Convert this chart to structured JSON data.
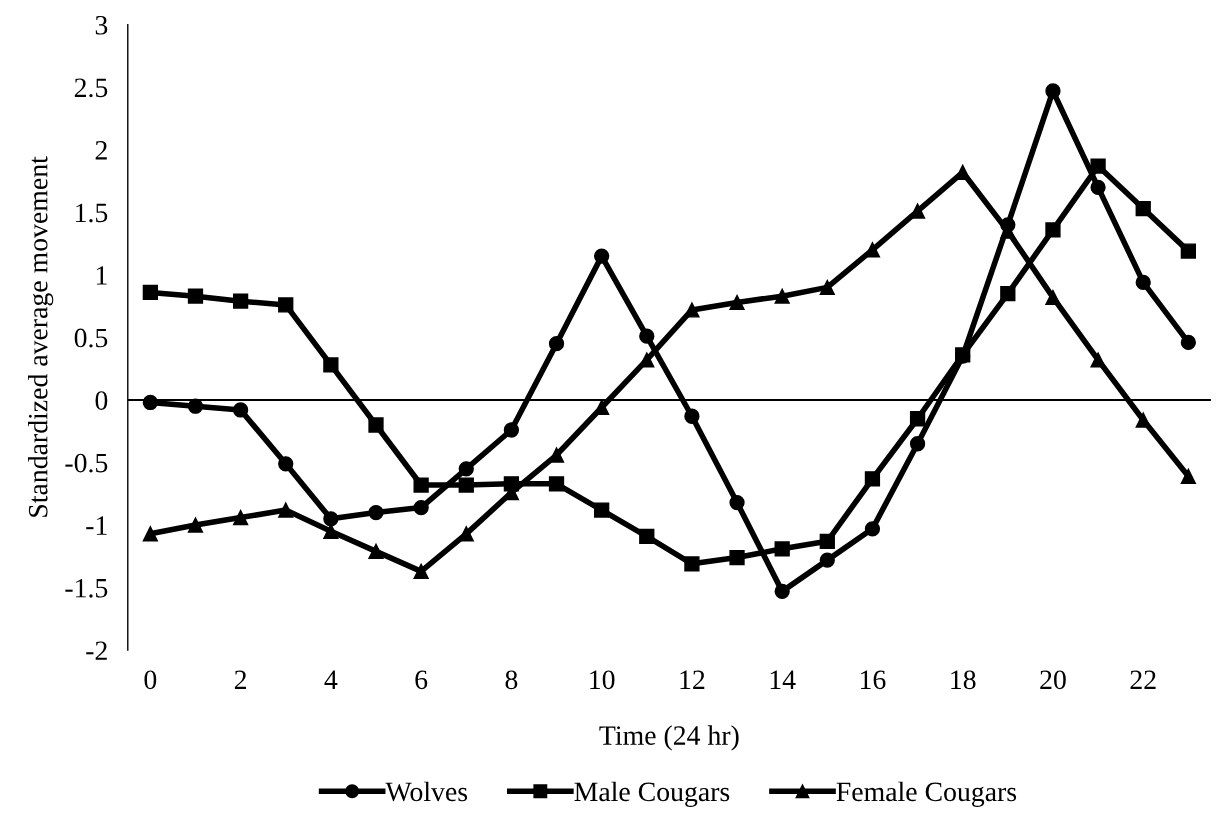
{
  "chart_data": {
    "type": "line",
    "xlabel": "Time (24 hr)",
    "ylabel": "Standardized average movement",
    "categories": [
      "0",
      null,
      "2",
      null,
      "4",
      null,
      "6",
      null,
      "8",
      null,
      "10",
      null,
      "12",
      null,
      "14",
      null,
      "16",
      null,
      "18",
      null,
      "20",
      null,
      "22",
      null
    ],
    "series": [
      {
        "name": "Wolves",
        "color": "#000000",
        "marker": "circle",
        "values": [
          -0.02,
          -0.05,
          -0.08,
          -0.51,
          -0.95,
          -0.9,
          -0.86,
          -0.55,
          -0.24,
          0.45,
          1.15,
          0.51,
          -0.13,
          -0.82,
          -1.53,
          -1.28,
          -1.03,
          -0.35,
          0.35,
          1.4,
          2.47,
          1.7,
          0.94,
          0.46
        ]
      },
      {
        "name": "Male Cougars",
        "color": "#000000",
        "marker": "square",
        "values": [
          0.86,
          0.83,
          0.79,
          0.76,
          0.28,
          -0.2,
          -0.68,
          -0.68,
          -0.67,
          -0.67,
          -0.88,
          -1.09,
          -1.31,
          -1.26,
          -1.19,
          -1.13,
          -0.63,
          -0.15,
          0.36,
          0.85,
          1.36,
          1.87,
          1.53,
          1.19
        ]
      },
      {
        "name": "Female Cougars",
        "color": "#000000",
        "marker": "triangle",
        "values": [
          -1.07,
          -1.0,
          -0.94,
          -0.88,
          -1.05,
          -1.21,
          -1.37,
          -1.07,
          -0.74,
          -0.44,
          -0.06,
          0.32,
          0.72,
          0.78,
          0.83,
          0.9,
          1.2,
          1.51,
          1.82,
          1.35,
          0.82,
          0.32,
          -0.16,
          -0.61
        ]
      }
    ],
    "ylim": [
      -2,
      3
    ],
    "yticks": [
      -2,
      -1.5,
      -1,
      -0.5,
      0,
      0.5,
      1,
      1.5,
      2,
      2.5,
      3
    ],
    "ref_lines": [
      {
        "axis": "y",
        "value": 0,
        "color": "#000000",
        "line_style": "solid"
      }
    ],
    "legend": "bottom",
    "line_style": "solid"
  }
}
